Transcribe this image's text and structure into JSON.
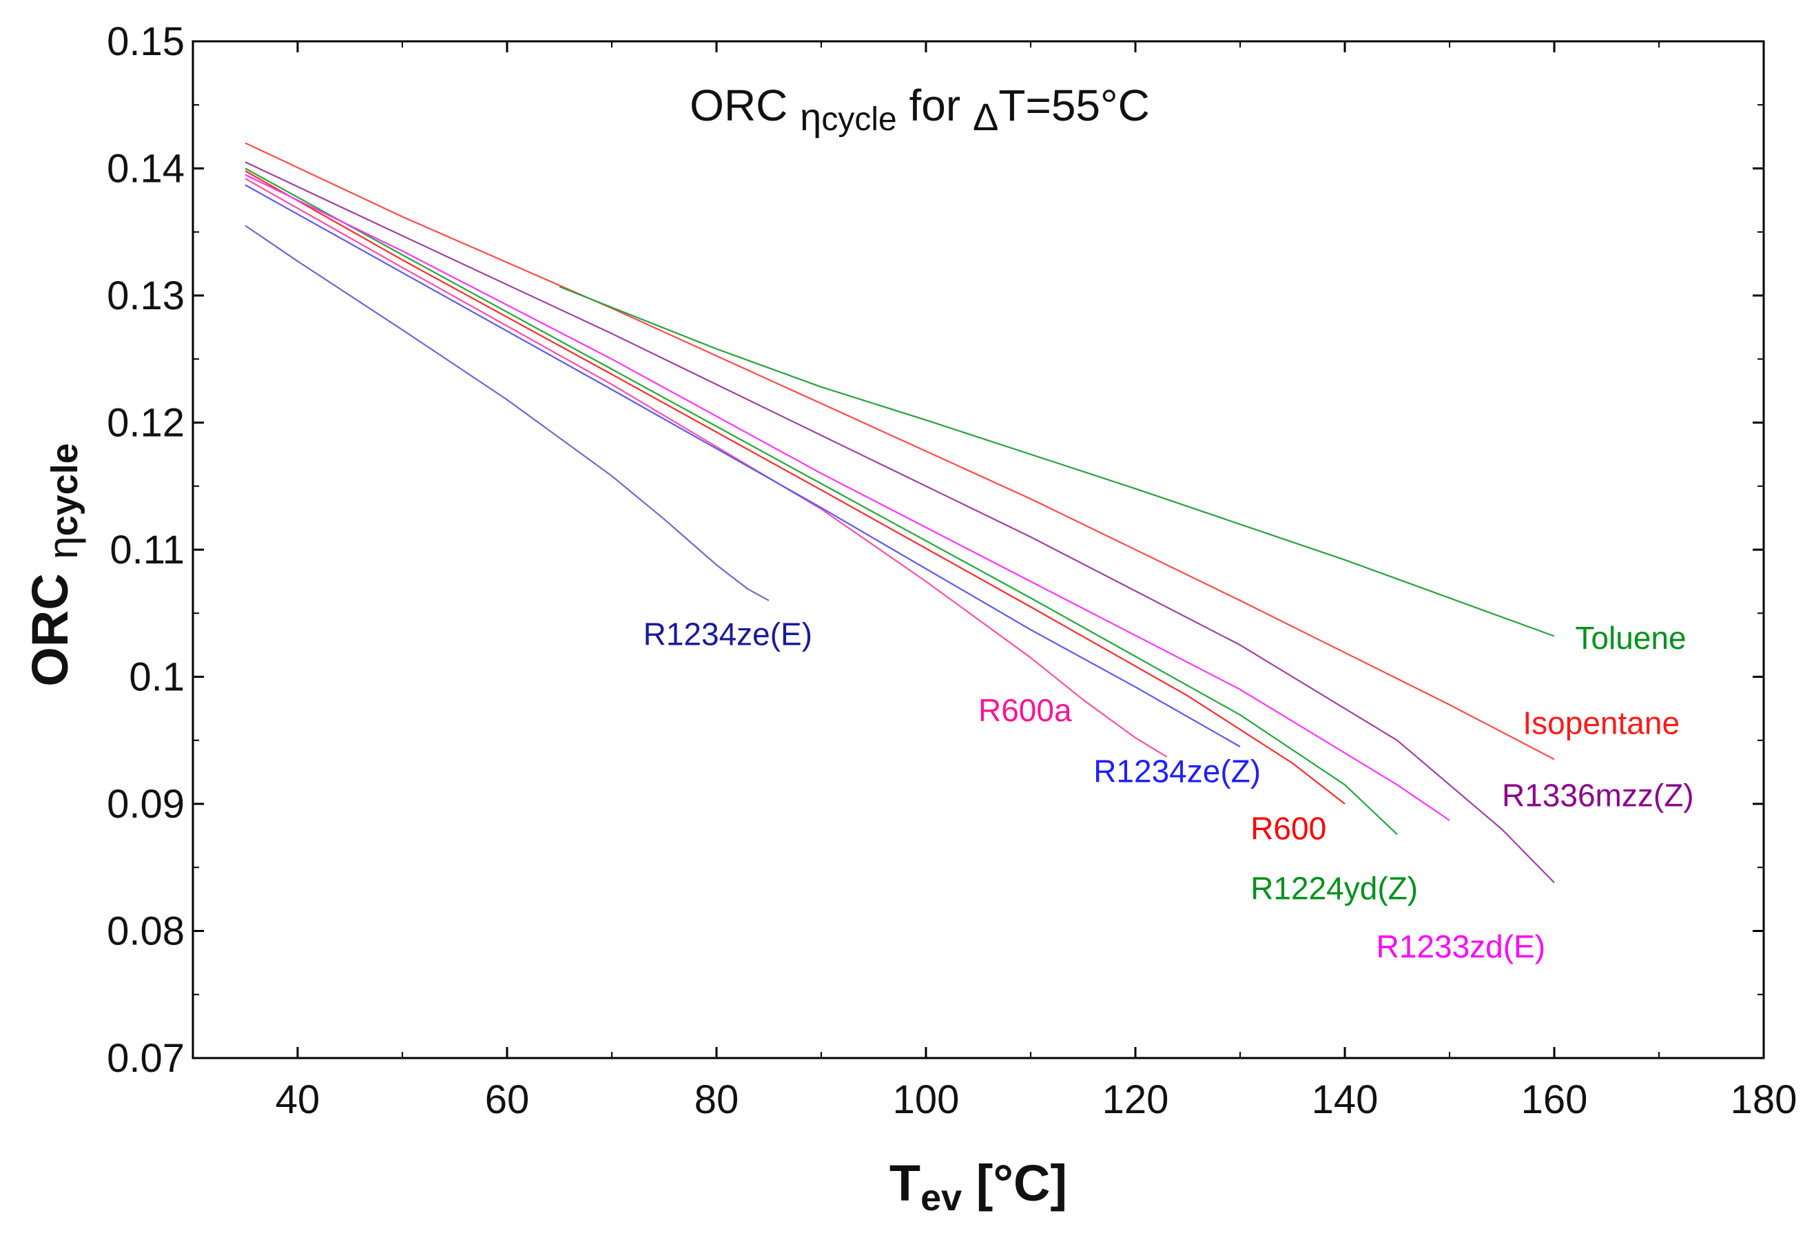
{
  "chart_data": {
    "type": "line",
    "title": {
      "main": "ORC ",
      "symbol": "η",
      "subscript": "cycle",
      "rest": " for ",
      "delta": "Δ",
      "condition": "T=55°C"
    },
    "xlabel": {
      "main": "T",
      "subscript": "ev",
      "rest": " [°C]"
    },
    "ylabel": {
      "main": "ORC ",
      "symbol": "η",
      "subscript": "cycle"
    },
    "xlim": [
      30,
      180
    ],
    "ylim": [
      0.07,
      0.15
    ],
    "x_ticks": [
      40,
      60,
      80,
      100,
      120,
      140,
      160,
      180
    ],
    "y_ticks": [
      0.07,
      0.08,
      0.09,
      0.1,
      0.11,
      0.12,
      0.13,
      0.14,
      0.15
    ],
    "y_tick_labels": [
      "0.07",
      "0.08",
      "0.09",
      "0.1",
      "0.11",
      "0.12",
      "0.13",
      "0.14",
      "0.15"
    ],
    "grid": false,
    "series": [
      {
        "name": "R1234ze(E)",
        "color": "#1a1a9a",
        "line_color": "#6b6bcc",
        "label_anchor": [
          73,
          0.1025
        ],
        "x": [
          35,
          40,
          50,
          60,
          70,
          75,
          80,
          83,
          85
        ],
        "y": [
          0.1355,
          0.1327,
          0.1273,
          0.1218,
          0.1158,
          0.1124,
          0.1088,
          0.1069,
          0.106
        ]
      },
      {
        "name": "R600a",
        "color": "#ff1493",
        "line_color": "#ff4da6",
        "label_anchor": [
          105,
          0.0965
        ],
        "x": [
          35,
          50,
          70,
          90,
          100,
          110,
          115,
          120,
          123
        ],
        "y": [
          0.1392,
          0.1322,
          0.123,
          0.1132,
          0.1075,
          0.1015,
          0.0982,
          0.0952,
          0.0937
        ]
      },
      {
        "name": "R1234ze(Z)",
        "color": "#1f1fff",
        "line_color": "#5a5af0",
        "label_anchor": [
          116,
          0.0917
        ],
        "x": [
          35,
          50,
          70,
          90,
          110,
          120,
          130
        ],
        "y": [
          0.1387,
          0.1318,
          0.1226,
          0.1133,
          0.1037,
          0.0992,
          0.0945
        ]
      },
      {
        "name": "R600",
        "color": "#ff0000",
        "line_color": "#ff2a2a",
        "label_anchor": [
          131,
          0.0872
        ],
        "x": [
          35,
          50,
          70,
          90,
          110,
          125,
          135,
          140
        ],
        "y": [
          0.1398,
          0.1328,
          0.1238,
          0.1147,
          0.1055,
          0.0985,
          0.0932,
          0.09
        ]
      },
      {
        "name": "R1224yd(Z)",
        "color": "#00901e",
        "line_color": "#22a83a",
        "label_anchor": [
          131,
          0.0825
        ],
        "x": [
          35,
          50,
          70,
          90,
          110,
          130,
          140,
          145
        ],
        "y": [
          0.14,
          0.1332,
          0.1242,
          0.1152,
          0.1062,
          0.097,
          0.0915,
          0.0876
        ]
      },
      {
        "name": "R1233zd(E)",
        "color": "#ff00ff",
        "line_color": "#ff33ff",
        "label_anchor": [
          143,
          0.0779
        ],
        "x": [
          35,
          50,
          70,
          90,
          110,
          130,
          145,
          150
        ],
        "y": [
          0.1395,
          0.1335,
          0.125,
          0.116,
          0.1075,
          0.099,
          0.0915,
          0.0887
        ]
      },
      {
        "name": "R1336mzz(Z)",
        "color": "#8b008b",
        "line_color": "#a040a0",
        "label_anchor": [
          155,
          0.0898
        ],
        "x": [
          35,
          50,
          70,
          90,
          110,
          130,
          145,
          155,
          160
        ],
        "y": [
          0.1405,
          0.1347,
          0.127,
          0.119,
          0.111,
          0.1025,
          0.095,
          0.088,
          0.0838
        ]
      },
      {
        "name": "Isopentane",
        "color": "#ff1a1a",
        "line_color": "#ff4a4a",
        "label_anchor": [
          157,
          0.0955
        ],
        "x": [
          35,
          50,
          70,
          90,
          110,
          130,
          150,
          160
        ],
        "y": [
          0.142,
          0.1362,
          0.129,
          0.1215,
          0.114,
          0.106,
          0.0978,
          0.0935
        ]
      },
      {
        "name": "Toluene",
        "color": "#00901e",
        "line_color": "#2aa040",
        "label_anchor": [
          162,
          0.1022
        ],
        "x": [
          65,
          80,
          90,
          100,
          120,
          140,
          160
        ],
        "y": [
          0.1307,
          0.1258,
          0.1228,
          0.1202,
          0.1148,
          0.1092,
          0.1032
        ]
      }
    ]
  }
}
